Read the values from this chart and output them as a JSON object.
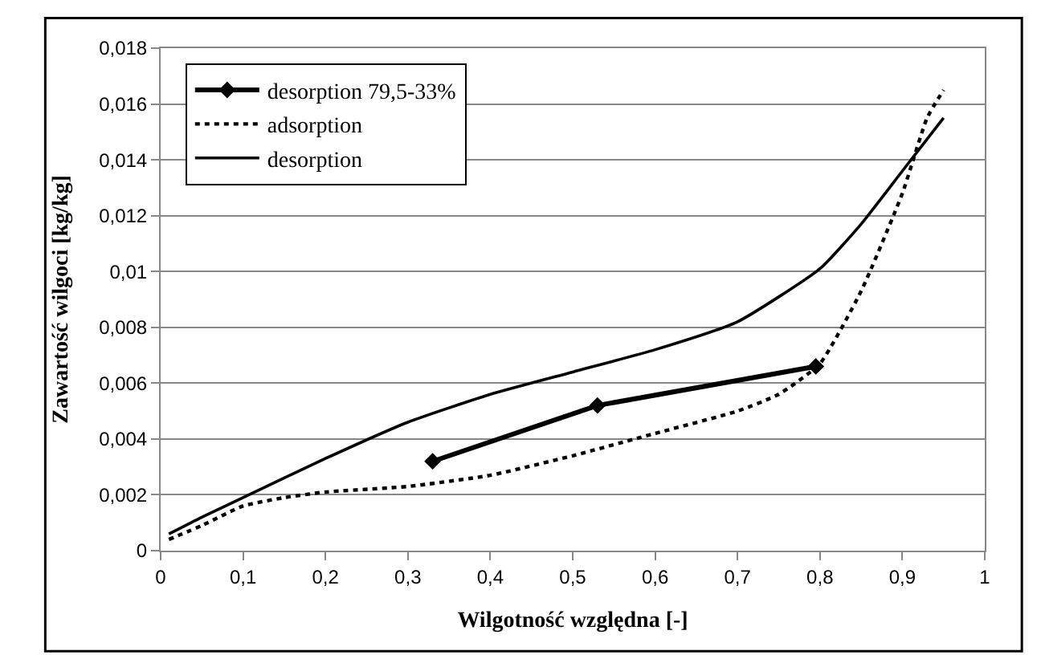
{
  "chart_data": {
    "type": "line",
    "xlabel": "Wilgotność względna [-]",
    "ylabel": "Zawartość wilgoci [kg/kg]",
    "xlim": [
      0,
      1
    ],
    "xticks": [
      {
        "value": 0,
        "label": "0"
      },
      {
        "value": 0.1,
        "label": "0,1"
      },
      {
        "value": 0.2,
        "label": "0,2"
      },
      {
        "value": 0.3,
        "label": "0,3"
      },
      {
        "value": 0.4,
        "label": "0,4"
      },
      {
        "value": 0.5,
        "label": "0,5"
      },
      {
        "value": 0.6,
        "label": "0,6"
      },
      {
        "value": 0.7,
        "label": "0,7"
      },
      {
        "value": 0.8,
        "label": "0,8"
      },
      {
        "value": 0.9,
        "label": "0,9"
      },
      {
        "value": 1,
        "label": "1"
      }
    ],
    "ylim": [
      0,
      0.018
    ],
    "yticks": [
      {
        "value": 0,
        "label": "0"
      },
      {
        "value": 0.002,
        "label": "0,002"
      },
      {
        "value": 0.004,
        "label": "0,004"
      },
      {
        "value": 0.006,
        "label": "0,006"
      },
      {
        "value": 0.008,
        "label": "0,008"
      },
      {
        "value": 0.01,
        "label": "0,01"
      },
      {
        "value": 0.012,
        "label": "0,012"
      },
      {
        "value": 0.014,
        "label": "0,014"
      },
      {
        "value": 0.016,
        "label": "0,016"
      },
      {
        "value": 0.018,
        "label": "0,018"
      }
    ],
    "grid": "y",
    "legend": "top left",
    "series": [
      {
        "name": "desorption 79,5-33%",
        "color": "#000000",
        "marker": "diamond",
        "line_style": "solid",
        "x": [
          0.33,
          0.53,
          0.795
        ],
        "values": [
          0.0032,
          0.0052,
          0.0066
        ]
      },
      {
        "name": "adsorption",
        "color": "#000000",
        "marker": "none",
        "line_style": "dotted",
        "x": [
          0.01,
          0.05,
          0.1,
          0.15,
          0.2,
          0.3,
          0.4,
          0.5,
          0.6,
          0.7,
          0.75,
          0.8,
          0.85,
          0.9,
          0.93,
          0.95
        ],
        "values": [
          0.0004,
          0.0009,
          0.0016,
          0.0019,
          0.0021,
          0.0023,
          0.0027,
          0.0034,
          0.0042,
          0.005,
          0.0056,
          0.0067,
          0.0093,
          0.0128,
          0.0155,
          0.0165
        ]
      },
      {
        "name": "desorption",
        "color": "#000000",
        "marker": "none",
        "line_style": "solid",
        "x": [
          0.01,
          0.05,
          0.1,
          0.2,
          0.3,
          0.4,
          0.5,
          0.6,
          0.7,
          0.8,
          0.85,
          0.9,
          0.95
        ],
        "values": [
          0.0006,
          0.0012,
          0.0019,
          0.0033,
          0.0046,
          0.0056,
          0.0064,
          0.0072,
          0.0082,
          0.0101,
          0.0117,
          0.0136,
          0.0155
        ]
      }
    ]
  }
}
